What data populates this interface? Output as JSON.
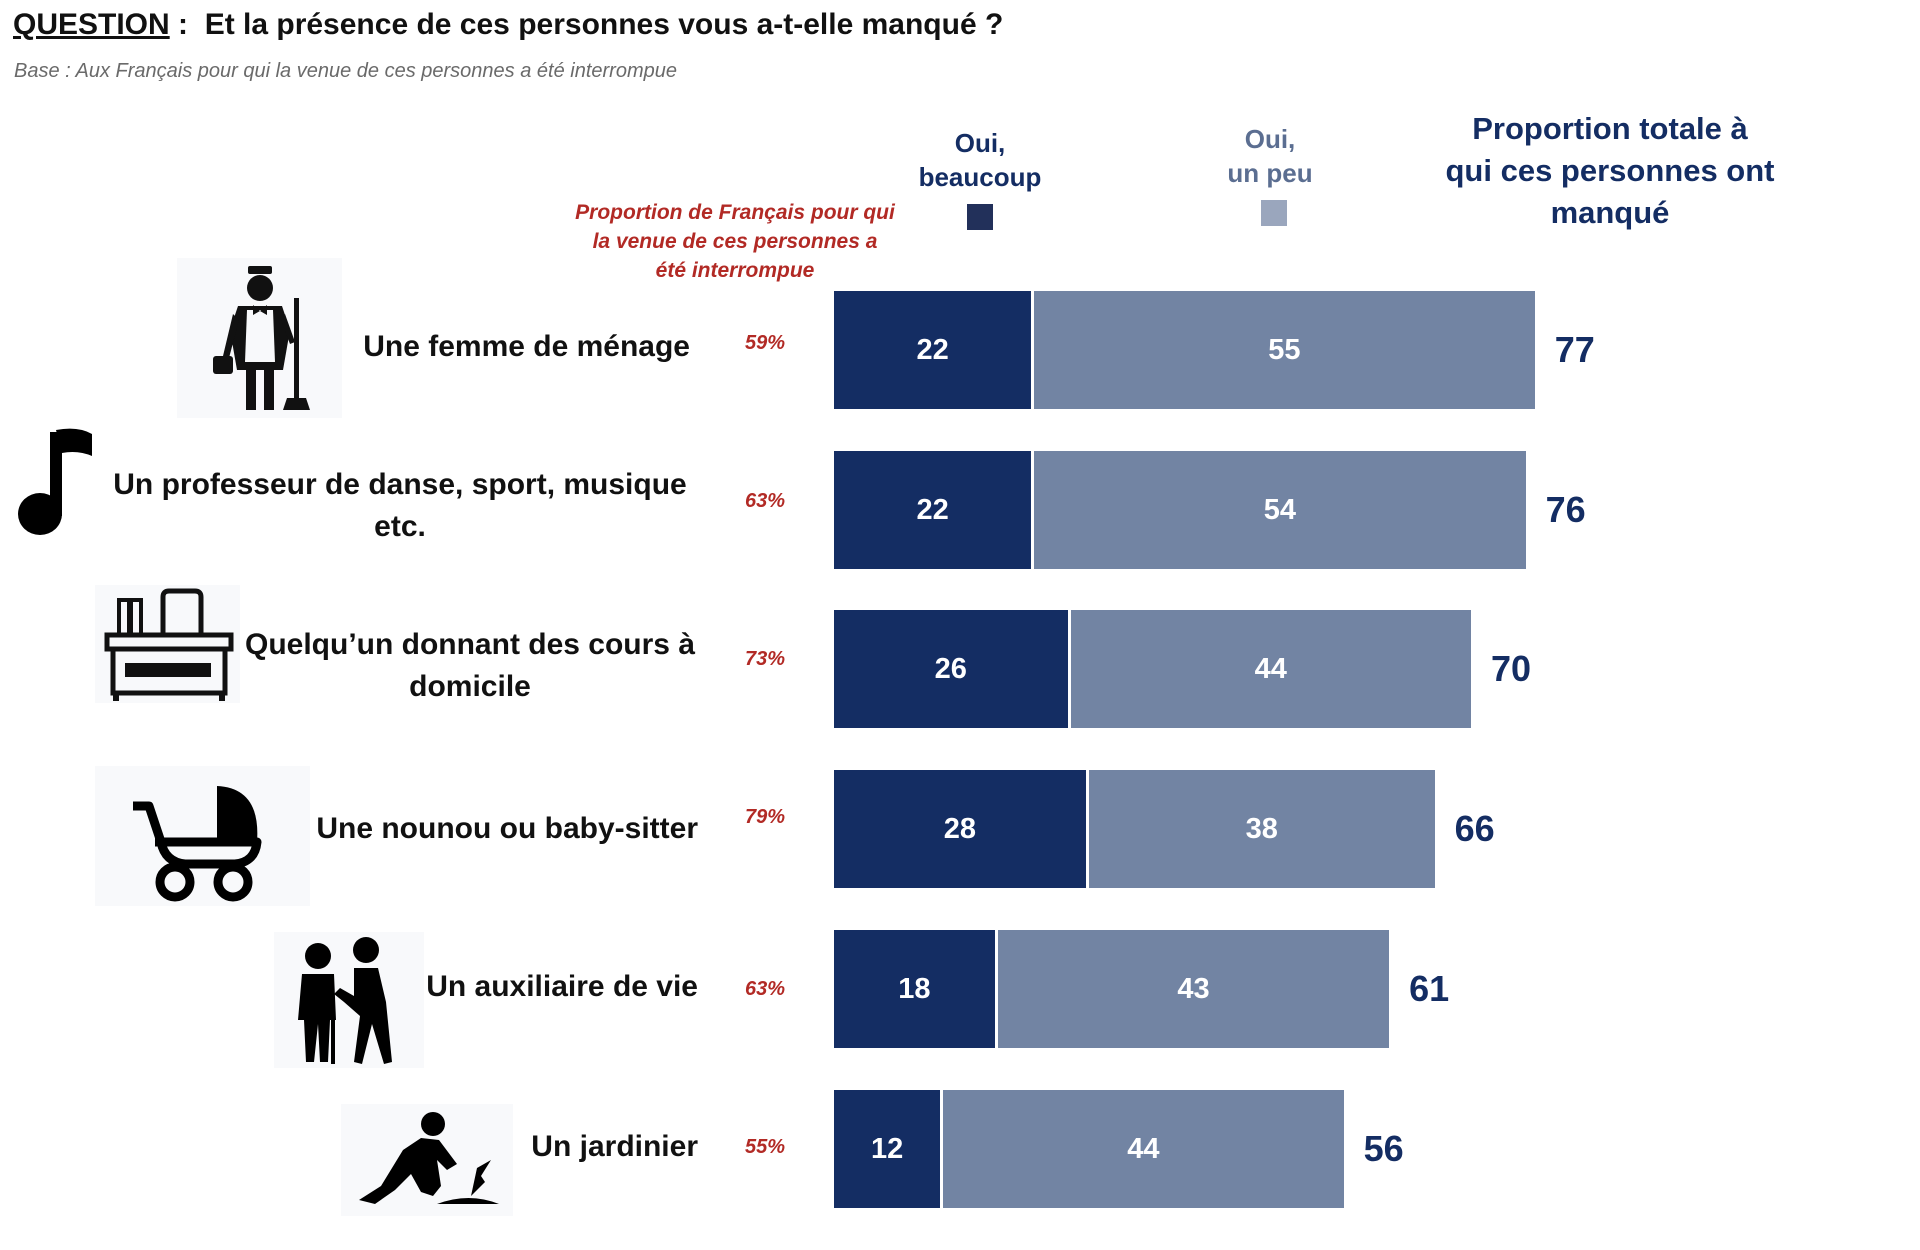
{
  "header": {
    "question_label": "QUESTION",
    "question_sep": " :  ",
    "question_text": "Et la présence de ces personnes vous a-t-elle manqué ?",
    "base": "Base : Aux Français pour qui la venue de ces personnes a été interrompue"
  },
  "legend": {
    "beaucoup_line1": "Oui,",
    "beaucoup_line2": "beaucoup",
    "peu_line1": "Oui,",
    "peu_line2": "un peu"
  },
  "total_header": [
    "Proportion totale à",
    "qui ces personnes ont",
    "manqué"
  ],
  "proportion_header": [
    "Proportion de Français pour qui",
    "la venue de ces personnes a",
    "été interrompue"
  ],
  "colors": {
    "beaucoup": "#142d63",
    "peu": "#7284a3",
    "pct": "#b22a25"
  },
  "icons": [
    "maid-icon",
    "music-note-icon",
    "desk-icon",
    "stroller-icon",
    "elderly-caregiver-icon",
    "gardener-icon"
  ],
  "chart_data": {
    "type": "bar",
    "orientation": "horizontal",
    "stacked": true,
    "categories": [
      [
        "Une femme de ménage"
      ],
      [
        "Un professeur de danse, sport, musique",
        "etc."
      ],
      [
        "Quelqu’un donnant des cours à",
        "domicile"
      ],
      [
        "Une nounou ou baby-sitter"
      ],
      [
        "Un auxiliaire de vie"
      ],
      [
        "Un jardinier"
      ]
    ],
    "proportion_interrompue": [
      "59%",
      "63%",
      "73%",
      "79%",
      "63%",
      "55%"
    ],
    "series": [
      {
        "name": "Oui, beaucoup",
        "values": [
          22,
          22,
          26,
          28,
          18,
          12
        ]
      },
      {
        "name": "Oui, un peu",
        "values": [
          55,
          54,
          44,
          38,
          43,
          44
        ]
      }
    ],
    "totals": [
      77,
      76,
      70,
      66,
      61,
      56
    ],
    "xlim": [
      0,
      77
    ],
    "grid": false,
    "legend_placement": "top"
  }
}
